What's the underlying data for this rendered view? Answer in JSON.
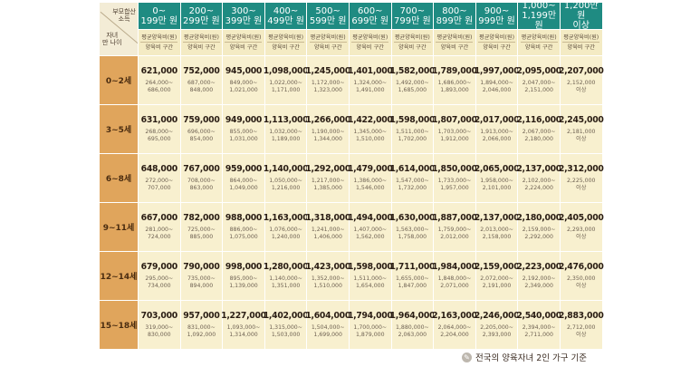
{
  "corner": {
    "top_label": "부모합산\n소득",
    "bottom_label": "자녀\n만 나이"
  },
  "income_brackets": [
    "0~\n199만 원",
    "200~\n299만 원",
    "300~\n399만 원",
    "400~\n499만 원",
    "500~\n599만 원",
    "600~\n699만 원",
    "700~\n799만 원",
    "800~\n899만 원",
    "900~\n999만 원",
    "1,000~\n1,199만 원",
    "1,200만 원\n이상"
  ],
  "sub_header": {
    "line1": "평균양육비(원)",
    "line2": "양육비 구간"
  },
  "rows": [
    {
      "age": "0~2세",
      "cells": [
        {
          "avg": "621,000",
          "range": "264,000~\n686,000"
        },
        {
          "avg": "752,000",
          "range": "687,000~\n848,000"
        },
        {
          "avg": "945,000",
          "range": "849,000~\n1,021,000"
        },
        {
          "avg": "1,098,000",
          "range": "1,022,000~\n1,171,000"
        },
        {
          "avg": "1,245,000",
          "range": "1,172,000~\n1,323,000"
        },
        {
          "avg": "1,401,000",
          "range": "1,324,000~\n1,491,000"
        },
        {
          "avg": "1,582,000",
          "range": "1,492,000~\n1,685,000"
        },
        {
          "avg": "1,789,000",
          "range": "1,686,000~\n1,893,000"
        },
        {
          "avg": "1,997,000",
          "range": "1,894,000~\n2,046,000"
        },
        {
          "avg": "2,095,000",
          "range": "2,047,000~\n2,151,000"
        },
        {
          "avg": "2,207,000",
          "range": "2,152,000\n이상"
        }
      ]
    },
    {
      "age": "3~5세",
      "cells": [
        {
          "avg": "631,000",
          "range": "268,000~\n695,000"
        },
        {
          "avg": "759,000",
          "range": "696,000~\n854,000"
        },
        {
          "avg": "949,000",
          "range": "855,000~\n1,031,000"
        },
        {
          "avg": "1,113,000",
          "range": "1,032,000~\n1,189,000"
        },
        {
          "avg": "1,266,000",
          "range": "1,190,000~\n1,344,000"
        },
        {
          "avg": "1,422,000",
          "range": "1,345,000~\n1,510,000"
        },
        {
          "avg": "1,598,000",
          "range": "1,511,000~\n1,702,000"
        },
        {
          "avg": "1,807,000",
          "range": "1,703,000~\n1,912,000"
        },
        {
          "avg": "2,017,000",
          "range": "1,913,000~\n2,066,000"
        },
        {
          "avg": "2,116,000",
          "range": "2,067,000~\n2,180,000"
        },
        {
          "avg": "2,245,000",
          "range": "2,181,000\n이상"
        }
      ]
    },
    {
      "age": "6~8세",
      "cells": [
        {
          "avg": "648,000",
          "range": "272,000~\n707,000"
        },
        {
          "avg": "767,000",
          "range": "708,000~\n863,000"
        },
        {
          "avg": "959,000",
          "range": "864,000~\n1,049,000"
        },
        {
          "avg": "1,140,000",
          "range": "1,050,000~\n1,216,000"
        },
        {
          "avg": "1,292,000",
          "range": "1,217,000~\n1,385,000"
        },
        {
          "avg": "1,479,000",
          "range": "1,386,000~\n1,546,000"
        },
        {
          "avg": "1,614,000",
          "range": "1,547,000~\n1,732,000"
        },
        {
          "avg": "1,850,000",
          "range": "1,733,000~\n1,957,000"
        },
        {
          "avg": "2,065,000",
          "range": "1,958,000~\n2,101,000"
        },
        {
          "avg": "2,137,000",
          "range": "2,102,000~\n2,224,000"
        },
        {
          "avg": "2,312,000",
          "range": "2,225,000\n이상"
        }
      ]
    },
    {
      "age": "9~11세",
      "cells": [
        {
          "avg": "667,000",
          "range": "281,000~\n724,000"
        },
        {
          "avg": "782,000",
          "range": "725,000~\n885,000"
        },
        {
          "avg": "988,000",
          "range": "886,000~\n1,075,000"
        },
        {
          "avg": "1,163,000",
          "range": "1,076,000~\n1,240,000"
        },
        {
          "avg": "1,318,000",
          "range": "1,241,000~\n1,406,000"
        },
        {
          "avg": "1,494,000",
          "range": "1,407,000~\n1,562,000"
        },
        {
          "avg": "1,630,000",
          "range": "1,563,000~\n1,758,000"
        },
        {
          "avg": "1,887,000",
          "range": "1,759,000~\n2,012,000"
        },
        {
          "avg": "2,137,000",
          "range": "2,013,000~\n2,158,000"
        },
        {
          "avg": "2,180,000",
          "range": "2,159,000~\n2,292,000"
        },
        {
          "avg": "2,405,000",
          "range": "2,293,000\n이상"
        }
      ]
    },
    {
      "age": "12~14세",
      "cells": [
        {
          "avg": "679,000",
          "range": "295,000~\n734,000"
        },
        {
          "avg": "790,000",
          "range": "735,000~\n894,000"
        },
        {
          "avg": "998,000",
          "range": "895,000~\n1,139,000"
        },
        {
          "avg": "1,280,000",
          "range": "1,140,000~\n1,351,000"
        },
        {
          "avg": "1,423,000",
          "range": "1,352,000~\n1,510,000"
        },
        {
          "avg": "1,598,000",
          "range": "1,511,000~\n1,654,000"
        },
        {
          "avg": "1,711,000",
          "range": "1,655,000~\n1,847,000"
        },
        {
          "avg": "1,984,000",
          "range": "1,848,000~\n2,071,000"
        },
        {
          "avg": "2,159,000",
          "range": "2,072,000~\n2,191,000"
        },
        {
          "avg": "2,223,000",
          "range": "2,192,000~\n2,349,000"
        },
        {
          "avg": "2,476,000",
          "range": "2,350,000\n이상"
        }
      ]
    },
    {
      "age": "15~18세",
      "cells": [
        {
          "avg": "703,000",
          "range": "319,000~\n830,000"
        },
        {
          "avg": "957,000",
          "range": "831,000~\n1,092,000"
        },
        {
          "avg": "1,227,000",
          "range": "1,093,000~\n1,314,000"
        },
        {
          "avg": "1,402,000",
          "range": "1,315,000~\n1,503,000"
        },
        {
          "avg": "1,604,000",
          "range": "1,504,000~\n1,699,000"
        },
        {
          "avg": "1,794,000",
          "range": "1,700,000~\n1,879,000"
        },
        {
          "avg": "1,964,000",
          "range": "1,880,000~\n2,063,000"
        },
        {
          "avg": "2,163,000",
          "range": "2,064,000~\n2,204,000"
        },
        {
          "avg": "2,246,000",
          "range": "2,205,000~\n2,393,000"
        },
        {
          "avg": "2,540,000",
          "range": "2,394,000~\n2,711,000"
        },
        {
          "avg": "2,883,000",
          "range": "2,712,000\n이상"
        }
      ]
    }
  ],
  "footnote": {
    "icon": "info-icon",
    "text": "전국의 양육자녀 2인 가구 기준"
  },
  "colors": {
    "header": "#1f8b82",
    "age": "#e0a55c",
    "cell": "#f8f0cf",
    "subheader": "#f4ebc4"
  }
}
